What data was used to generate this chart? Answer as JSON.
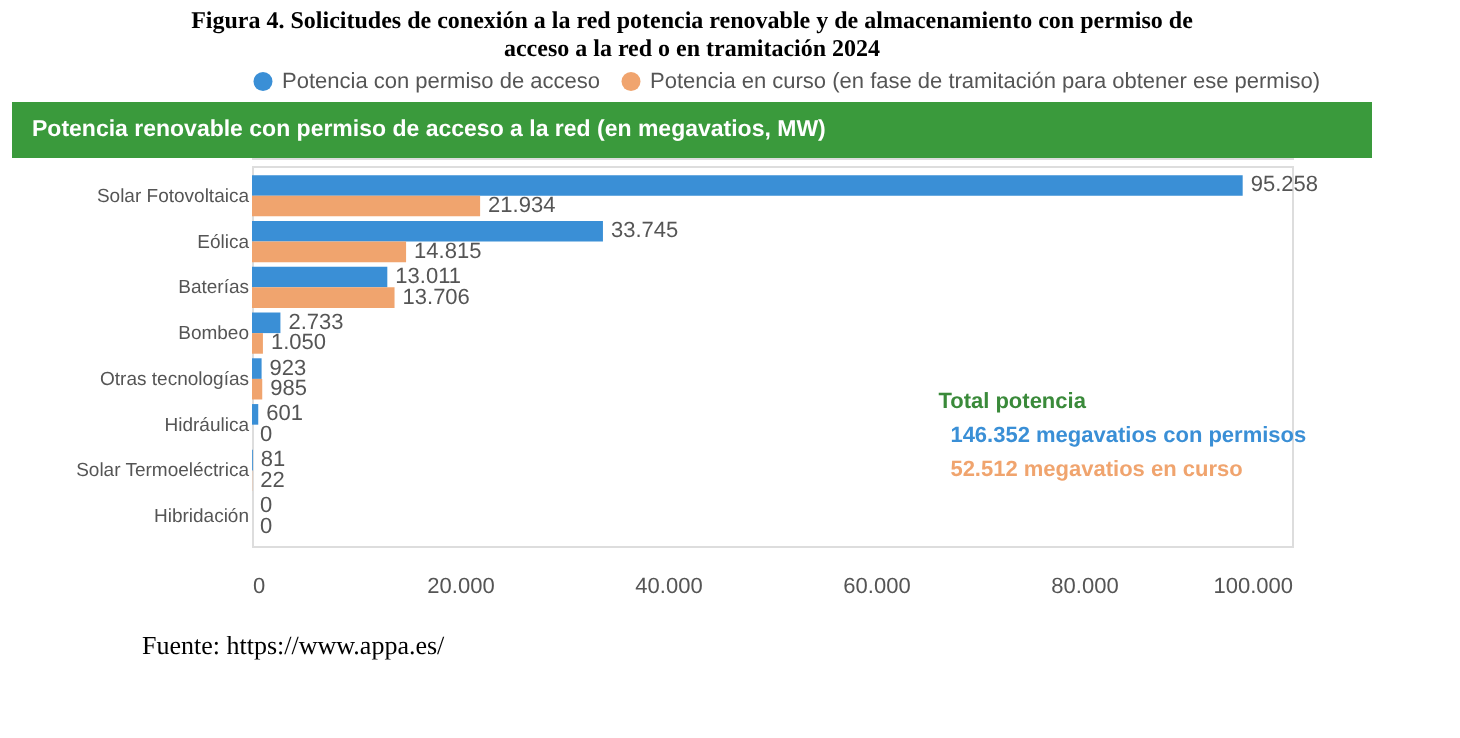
{
  "chart_data": {
    "type": "bar",
    "orientation": "horizontal",
    "title": [
      "Figura 4. Solicitudes de conexión a la red potencia renovable y de almacenamiento con permiso de",
      "acceso a la red o en tramitación 2024"
    ],
    "subtitle": "Potencia renovable con permiso de acceso a la red (en megavatios, MW)",
    "categories": [
      "Solar Fotovoltaica",
      "Eólica",
      "Baterías",
      "Bombeo",
      "Otras tecnologías",
      "Hidráulica",
      "Solar Termoeléctrica",
      "Hibridación"
    ],
    "series": [
      {
        "name": "Potencia con permiso de acceso",
        "color": "#3a8fd6",
        "values": [
          95258,
          33745,
          13011,
          2733,
          923,
          601,
          81,
          0
        ],
        "value_labels": [
          "95.258",
          "33.745",
          "13.011",
          "2.733",
          "923",
          "601",
          "81",
          "0"
        ]
      },
      {
        "name": "Potencia en curso (en fase de tramitación para obtener ese permiso)",
        "color": "#f0a46e",
        "values": [
          21934,
          14815,
          13706,
          1050,
          985,
          0,
          22,
          0
        ],
        "value_labels": [
          "21.934",
          "14.815",
          "13.706",
          "1.050",
          "985",
          "0",
          "22",
          "0"
        ]
      }
    ],
    "xlim": [
      0,
      100000
    ],
    "xticks": [
      0,
      {
        "value": 20000,
        "label": "20.000"
      },
      {
        "value": 40000,
        "label": "40.000"
      },
      {
        "value": 60000,
        "label": "60.000"
      },
      {
        "value": 80000,
        "label": "80.000"
      },
      {
        "value": 100000,
        "label": "100.000"
      }
    ],
    "grid": false,
    "legend": "top left",
    "annotations": [
      "Total potencia",
      "146.352 megavatios con permisos",
      "52.512 megavatios en curso",
      "Fuente: https://www.appa.es/"
    ]
  }
}
